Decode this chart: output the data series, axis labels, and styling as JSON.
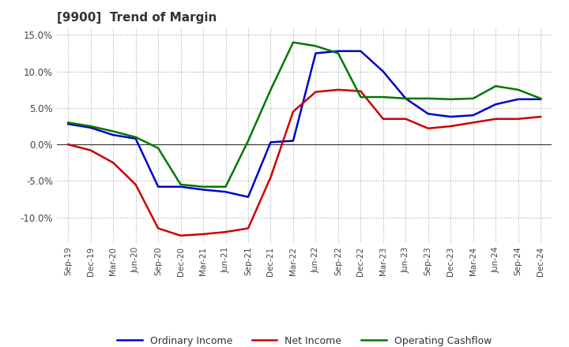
{
  "title": "[9900]  Trend of Margin",
  "x_labels": [
    "Sep-19",
    "Dec-19",
    "Mar-20",
    "Jun-20",
    "Sep-20",
    "Dec-20",
    "Mar-21",
    "Jun-21",
    "Sep-21",
    "Dec-21",
    "Mar-22",
    "Jun-22",
    "Sep-22",
    "Dec-22",
    "Mar-23",
    "Jun-23",
    "Sep-23",
    "Dec-23",
    "Mar-24",
    "Jun-24",
    "Sep-24",
    "Dec-24"
  ],
  "ordinary_income": [
    2.8,
    2.3,
    1.3,
    0.8,
    -5.8,
    -5.8,
    -6.2,
    -6.5,
    -7.2,
    0.3,
    0.5,
    12.5,
    12.8,
    12.8,
    10.0,
    6.3,
    4.2,
    3.8,
    4.0,
    5.5,
    6.2,
    6.2
  ],
  "net_income": [
    0.0,
    -0.8,
    -2.5,
    -5.5,
    -11.5,
    -12.5,
    -12.3,
    -12.0,
    -11.5,
    -4.5,
    4.5,
    7.2,
    7.5,
    7.3,
    3.5,
    3.5,
    2.2,
    2.5,
    3.0,
    3.5,
    3.5,
    3.8
  ],
  "operating_cashflow": [
    3.0,
    2.5,
    1.8,
    1.0,
    -0.5,
    -5.5,
    -5.8,
    -5.8,
    0.5,
    7.5,
    14.0,
    13.5,
    12.5,
    6.5,
    6.5,
    6.3,
    6.3,
    6.2,
    6.3,
    8.0,
    7.5,
    6.3
  ],
  "ylim": [
    -13.5,
    16.0
  ],
  "yticks": [
    -10.0,
    -5.0,
    0.0,
    5.0,
    10.0,
    15.0
  ],
  "line_colors": {
    "ordinary_income": "#0000cc",
    "net_income": "#cc0000",
    "operating_cashflow": "#007700"
  },
  "line_width": 1.8,
  "background_color": "#ffffff",
  "grid_color": "#aaaaaa",
  "legend_labels": [
    "Ordinary Income",
    "Net Income",
    "Operating Cashflow"
  ]
}
